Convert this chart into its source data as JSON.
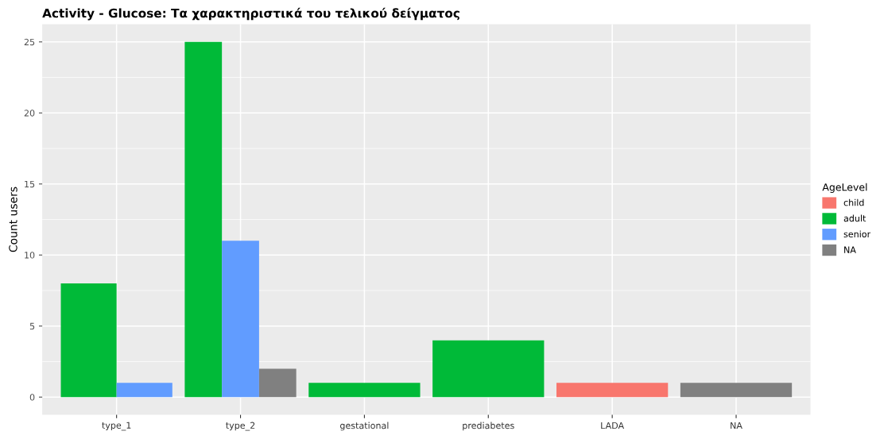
{
  "chart_data": {
    "type": "bar",
    "title": "Activity - Glucose: Τα χαρακτηριστικά του τελικού δείγματος",
    "ylabel": "Count users",
    "legend_title": "AgeLevel",
    "categories": [
      "type_1",
      "type_2",
      "gestational",
      "prediabetes",
      "LADA",
      "NA"
    ],
    "series": [
      {
        "name": "child",
        "color": "#f8766d",
        "values": [
          null,
          null,
          null,
          null,
          1,
          null
        ]
      },
      {
        "name": "adult",
        "color": "#00ba38",
        "values": [
          8,
          25,
          1,
          4,
          null,
          null
        ]
      },
      {
        "name": "senior",
        "color": "#619cff",
        "values": [
          1,
          11,
          null,
          null,
          null,
          null
        ]
      },
      {
        "name": "NA",
        "color": "#808080",
        "values": [
          null,
          2,
          null,
          null,
          null,
          1
        ]
      }
    ],
    "ylim": [
      -1.25,
      26.25
    ],
    "yticks": [
      0,
      5,
      10,
      15,
      20,
      25
    ],
    "grid": true,
    "legend": "right"
  }
}
